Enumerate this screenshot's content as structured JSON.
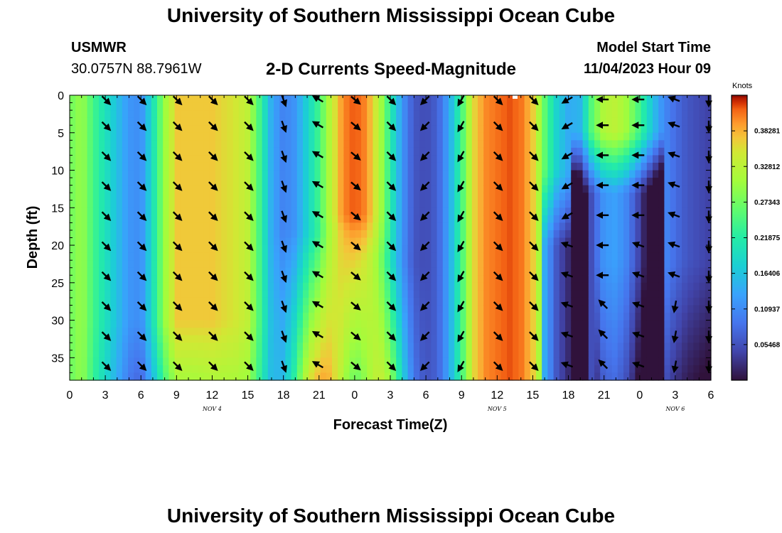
{
  "page": {
    "title_top": "University of Southern Mississippi Ocean Cube",
    "title_bottom": "University of Southern Mississippi Ocean Cube",
    "station_name": "USMWR",
    "station_coords": "30.0757N  88.7961W",
    "plot_title": "2-D Currents Speed-Magnitude",
    "model_start_label": "Model Start Time",
    "model_start_value": "11/04/2023 Hour 09"
  },
  "chart_data": {
    "type": "heatmap",
    "title": "2-D Currents Speed-Magnitude",
    "xlabel": "Forecast Time(Z)",
    "ylabel": "Depth (ft)",
    "colorbar_label": "Knots",
    "x_tick_labels": [
      "0",
      "3",
      "6",
      "9",
      "12",
      "15",
      "18",
      "21",
      "0",
      "3",
      "6",
      "9",
      "12",
      "15",
      "18",
      "21",
      "0",
      "3",
      "6"
    ],
    "x_range_hours": [
      0,
      54
    ],
    "y_tick_labels": [
      "0",
      "5",
      "10",
      "15",
      "20",
      "25",
      "30",
      "35"
    ],
    "y_range_ft": [
      0,
      38
    ],
    "date_labels": [
      {
        "label": "NOV 4",
        "hour": 12
      },
      {
        "label": "NOV 5",
        "hour": 36
      },
      {
        "label": "NOV 6",
        "hour": 51
      }
    ],
    "colorbar_ticks": [
      "0.38281",
      "0.32812",
      "0.27343",
      "0.21875",
      "0.16406",
      "0.10937",
      "0.05468"
    ],
    "colorbar_tick_values": [
      0.38281,
      0.32812,
      0.27343,
      0.21875,
      0.16406,
      0.10937,
      0.05468
    ],
    "color_range_knots": [
      0,
      0.4375
    ],
    "surface_speed_by_hour": {
      "hours": [
        0,
        1,
        2,
        3,
        4,
        5,
        6,
        7,
        8,
        9,
        10,
        11,
        12,
        13,
        14,
        15,
        16,
        17,
        18,
        19,
        20,
        21,
        22,
        23,
        24,
        25,
        26,
        27,
        28,
        29,
        30,
        31,
        32,
        33,
        34,
        35,
        36,
        37,
        38,
        39,
        40,
        41,
        42,
        43,
        44,
        45,
        46,
        47,
        48,
        49,
        50,
        51,
        52,
        53,
        54
      ],
      "values": [
        0.27,
        0.3,
        0.24,
        0.2,
        0.16,
        0.12,
        0.11,
        0.2,
        0.3,
        0.37,
        0.37,
        0.37,
        0.37,
        0.36,
        0.35,
        0.33,
        0.24,
        0.14,
        0.1,
        0.12,
        0.18,
        0.24,
        0.33,
        0.4,
        0.42,
        0.4,
        0.33,
        0.22,
        0.12,
        0.06,
        0.05,
        0.07,
        0.14,
        0.24,
        0.36,
        0.4,
        0.41,
        0.42,
        0.41,
        0.37,
        0.26,
        0.18,
        0.14,
        0.15,
        0.26,
        0.32,
        0.33,
        0.3,
        0.24,
        0.17,
        0.11,
        0.08,
        0.06,
        0.05,
        0.04
      ]
    },
    "arrow_depths_ft": [
      0,
      4,
      8,
      12,
      16,
      20,
      24,
      28,
      32,
      36
    ],
    "arrow_hours": [
      3,
      6,
      9,
      12,
      15,
      18,
      21,
      24,
      27,
      30,
      33,
      36,
      39,
      42,
      45,
      48,
      51,
      54
    ]
  }
}
